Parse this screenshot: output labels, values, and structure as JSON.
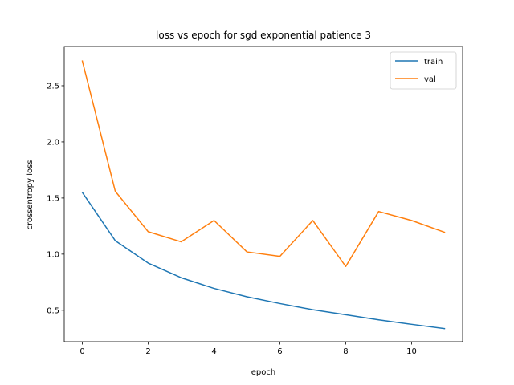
{
  "chart_data": {
    "type": "line",
    "title": "loss vs epoch for sgd exponential patience 3",
    "xlabel": "epoch",
    "ylabel": "crossentropy loss",
    "x": [
      0,
      1,
      2,
      3,
      4,
      5,
      6,
      7,
      8,
      9,
      10,
      11
    ],
    "xlim": [
      -0.55,
      11.55
    ],
    "ylim": [
      0.22,
      2.85
    ],
    "xticks": [
      0,
      2,
      4,
      6,
      8,
      10
    ],
    "yticks": [
      0.5,
      1.0,
      1.5,
      2.0,
      2.5
    ],
    "ytick_labels": [
      "0.5",
      "1.0",
      "1.5",
      "2.0",
      "2.5"
    ],
    "grid": false,
    "legend": "top-right",
    "series": [
      {
        "name": "train",
        "color": "#1f77b4",
        "values": [
          1.55,
          1.12,
          0.92,
          0.79,
          0.695,
          0.62,
          0.56,
          0.505,
          0.46,
          0.415,
          0.375,
          0.337
        ]
      },
      {
        "name": "val",
        "color": "#ff7f0e",
        "values": [
          2.72,
          1.56,
          1.2,
          1.11,
          1.3,
          1.02,
          0.98,
          1.3,
          0.89,
          1.38,
          1.3,
          1.195
        ]
      }
    ]
  }
}
